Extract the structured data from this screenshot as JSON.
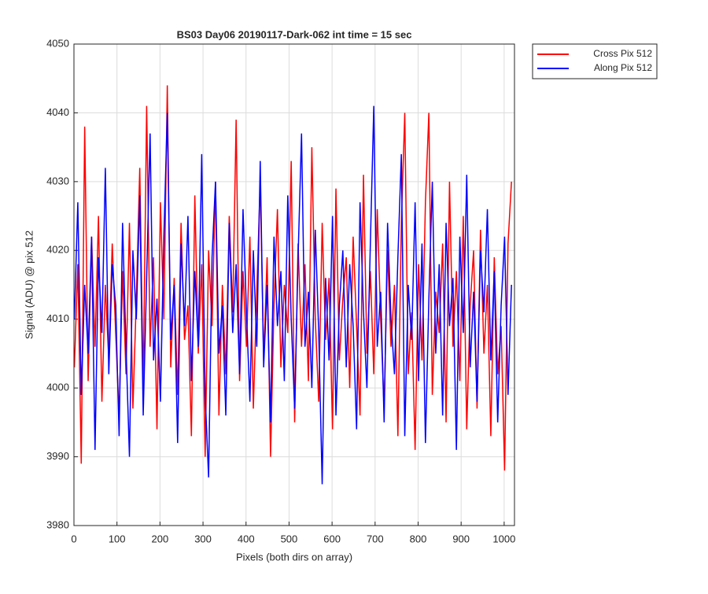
{
  "chart_data": {
    "type": "line",
    "title": "BS03 Day06 20190117-Dark-062 int time = 15 sec",
    "xlabel": "Pixels (both dirs on array)",
    "ylabel": "Signal (ADU) @ pix 512",
    "x": [
      1,
      9,
      17,
      25,
      33,
      41,
      49,
      57,
      65,
      73,
      81,
      89,
      97,
      105,
      113,
      121,
      129,
      137,
      145,
      153,
      161,
      169,
      177,
      185,
      193,
      201,
      209,
      217,
      225,
      233,
      241,
      249,
      257,
      265,
      273,
      281,
      289,
      297,
      305,
      313,
      321,
      329,
      337,
      345,
      353,
      361,
      369,
      377,
      385,
      393,
      401,
      409,
      417,
      425,
      433,
      441,
      449,
      457,
      465,
      473,
      481,
      489,
      497,
      505,
      513,
      521,
      529,
      537,
      545,
      553,
      561,
      569,
      577,
      585,
      593,
      601,
      609,
      617,
      625,
      633,
      641,
      649,
      657,
      665,
      673,
      681,
      689,
      697,
      705,
      713,
      721,
      729,
      737,
      745,
      753,
      761,
      769,
      777,
      785,
      793,
      801,
      809,
      817,
      825,
      833,
      841,
      849,
      857,
      865,
      873,
      881,
      889,
      897,
      905,
      913,
      921,
      929,
      937,
      945,
      953,
      961,
      969,
      977,
      985,
      993,
      1001,
      1009,
      1017
    ],
    "series": [
      {
        "name": "Cross Pix 512",
        "color": "#ff0000",
        "values": [
          4003,
          4018,
          3989,
          4038,
          4001,
          4022,
          4006,
          4025,
          3998,
          4015,
          4004,
          4021,
          4008,
          3996,
          4017,
          4002,
          4024,
          3997,
          4013,
          4032,
          4000,
          4041,
          4006,
          4019,
          3994,
          4027,
          4010,
          4044,
          4003,
          4016,
          3999,
          4024,
          4007,
          4012,
          3993,
          4028,
          4005,
          4018,
          3990,
          4020,
          4009,
          4030,
          3996,
          4015,
          4002,
          4025,
          4011,
          4039,
          4001,
          4017,
          4006,
          4022,
          3997,
          4014,
          4030,
          4004,
          4019,
          3990,
          4012,
          4026,
          4003,
          4015,
          4008,
          4033,
          3995,
          4021,
          4006,
          4018,
          4001,
          4035,
          4010,
          3998,
          4024,
          4007,
          4016,
          3994,
          4029,
          4004,
          4013,
          4019,
          4000,
          4022,
          4009,
          3996,
          4031,
          4005,
          4017,
          4002,
          4026,
          4010,
          3997,
          4020,
          4006,
          4015,
          3993,
          4024,
          4040,
          4002,
          4011,
          3991,
          4018,
          4004,
          4027,
          4040,
          3999,
          4014,
          4008,
          4021,
          3995,
          4030,
          4006,
          4017,
          4001,
          4025,
          3994,
          4012,
          4020,
          3997,
          4023,
          4005,
          4015,
          3993,
          4019,
          4002,
          4009,
          3988,
          4021,
          4030
        ]
      },
      {
        "name": "Along Pix 512",
        "color": "#0000ff",
        "values": [
          4010,
          4027,
          3999,
          4015,
          4005,
          4022,
          3991,
          4019,
          4008,
          4032,
          4002,
          4018,
          4012,
          3993,
          4024,
          4006,
          3990,
          4020,
          4010,
          4028,
          3996,
          4016,
          4037,
          4004,
          4013,
          3998,
          4022,
          4040,
          4007,
          4015,
          3992,
          4021,
          4009,
          4025,
          4001,
          4017,
          4006,
          4034,
          3999,
          3987,
          4019,
          4030,
          4005,
          4012,
          3996,
          4024,
          4008,
          4018,
          4002,
          4026,
          4011,
          3998,
          4020,
          4006,
          4033,
          4003,
          4015,
          3995,
          4022,
          4009,
          4017,
          4001,
          4028,
          4010,
          3997,
          4019,
          4037,
          4006,
          4014,
          4000,
          4023,
          4008,
          3986,
          4016,
          4004,
          4025,
          3996,
          4012,
          4020,
          4003,
          4018,
          4009,
          3994,
          4027,
          4011,
          4000,
          4021,
          4041,
          4006,
          4014,
          3995,
          4024,
          4010,
          4002,
          4019,
          4034,
          3993,
          4015,
          4007,
          4027,
          4001,
          4021,
          3992,
          4013,
          4030,
          4005,
          4018,
          3996,
          4024,
          4009,
          4016,
          3991,
          4022,
          4008,
          4031,
          4003,
          4014,
          3998,
          4020,
          4011,
          4026,
          4004,
          4017,
          3995,
          4012,
          4022,
          3999,
          4015
        ]
      }
    ],
    "xlim": [
      0,
      1024
    ],
    "ylim": [
      3980,
      4050
    ],
    "xticks": [
      0,
      100,
      200,
      300,
      400,
      500,
      600,
      700,
      800,
      900,
      1000
    ],
    "yticks": [
      3980,
      3990,
      4000,
      4010,
      4020,
      4030,
      4040,
      4050
    ],
    "grid": true,
    "legend": "outside-top-right"
  }
}
